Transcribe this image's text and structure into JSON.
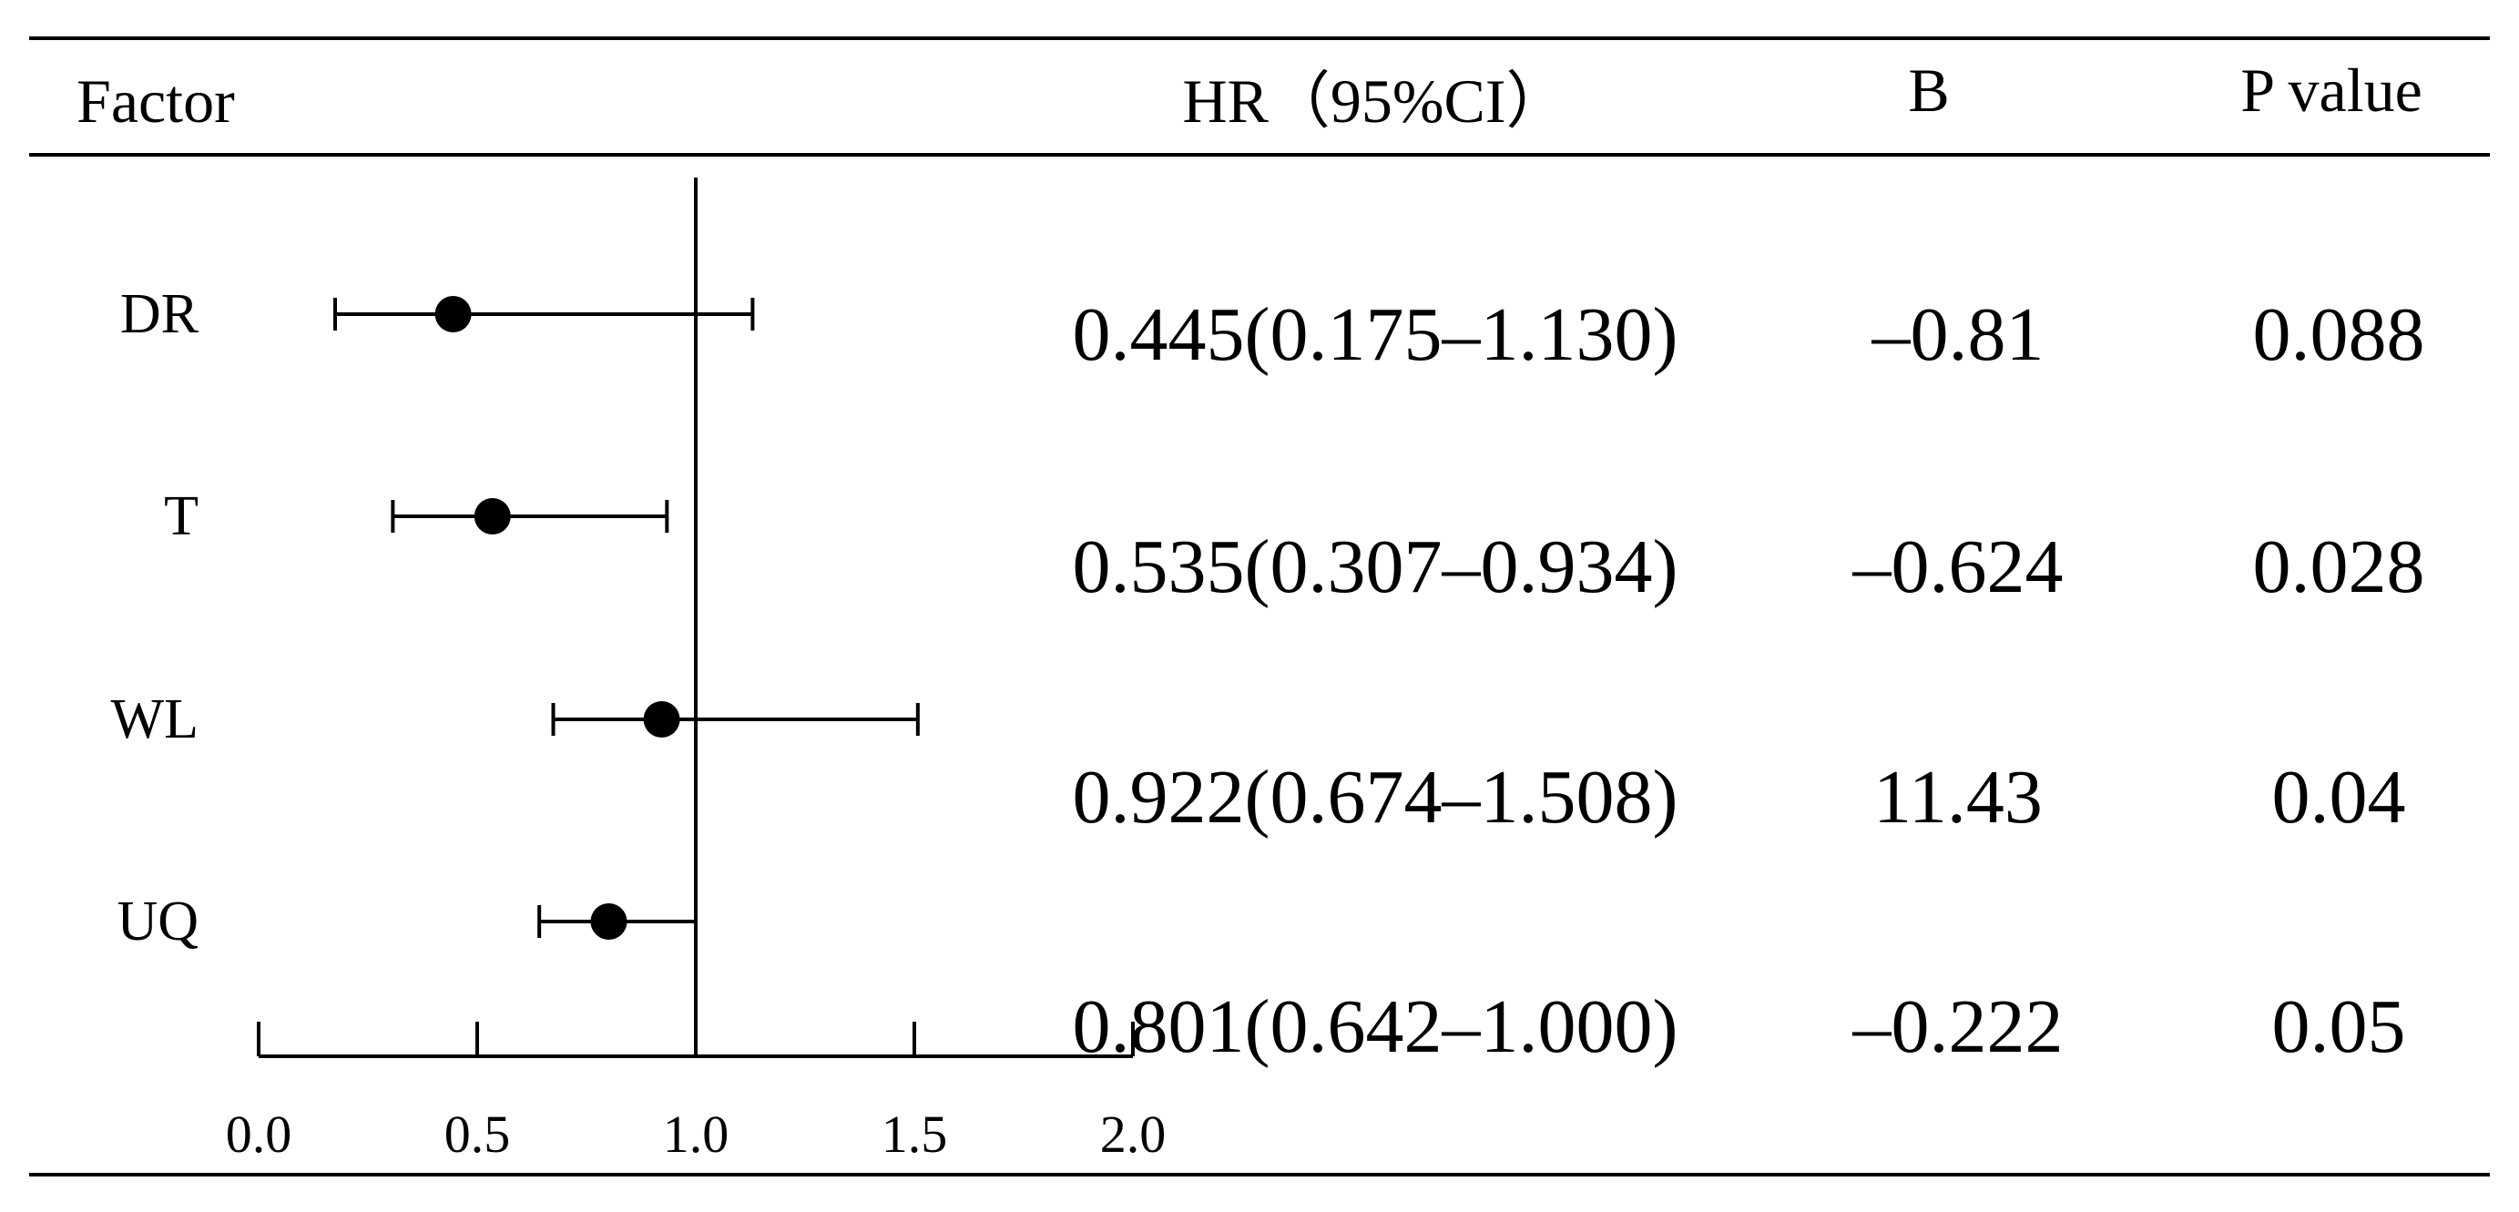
{
  "table": {
    "headers": {
      "factor": "Factor",
      "hr_ci": "HR（95%CI）",
      "b": "B",
      "p": "P value"
    },
    "rows": [
      {
        "factor": "DR",
        "hr_ci": "0.445(0.175–1.130)",
        "b": "–0.81",
        "p": "0.088"
      },
      {
        "factor": "T",
        "hr_ci": "0.535(0.307–0.934)",
        "b": "–0.624",
        "p": "0.028"
      },
      {
        "factor": "WL",
        "hr_ci": "0.922(0.674–1.508)",
        "b": "11.43",
        "p": "0.04"
      },
      {
        "factor": "UQ",
        "hr_ci": "0.801(0.642–1.000)",
        "b": "–0.222",
        "p": "0.05"
      }
    ]
  },
  "chart_data": {
    "type": "scatter",
    "categories": [
      "DR",
      "T",
      "WL",
      "UQ"
    ],
    "points": [
      {
        "category": "DR",
        "hr": 0.445,
        "lower": 0.175,
        "upper": 1.13
      },
      {
        "category": "T",
        "hr": 0.535,
        "lower": 0.307,
        "upper": 0.934
      },
      {
        "category": "WL",
        "hr": 0.922,
        "lower": 0.674,
        "upper": 1.508
      },
      {
        "category": "UQ",
        "hr": 0.801,
        "lower": 0.642,
        "upper": 1.0
      }
    ],
    "reference_line": 1.0,
    "xlim": [
      0.0,
      2.0
    ],
    "xticks": [
      0.0,
      0.5,
      1.0,
      1.5,
      2.0
    ],
    "xtick_labels": [
      "0.0",
      "0.5",
      "1.0",
      "1.5",
      "2.0"
    ],
    "grid": false,
    "colors": {
      "marker": "#000000",
      "line": "#000000"
    }
  }
}
